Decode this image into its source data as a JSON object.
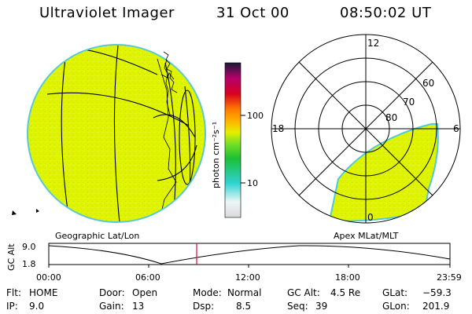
{
  "header": {
    "instrument": "Ultraviolet Imager",
    "date": "31 Oct 00",
    "time": "08:50:02 UT"
  },
  "colorbar": {
    "unit_label": "photon cm⁻²s⁻¹",
    "tick_labels": [
      "100",
      "10"
    ]
  },
  "polar_plot": {
    "mlt_labels": {
      "top": "12",
      "left": "18",
      "right": "6",
      "bottom": "0"
    },
    "lat_labels": [
      "60",
      "70",
      "80"
    ]
  },
  "image_labels": {
    "left": "Geographic Lat/Lon",
    "right": "Apex MLat/MLT"
  },
  "altitude_plot": {
    "axis_label": "GC Alt",
    "y_ticks": [
      "9.0",
      "1.8"
    ],
    "x_ticks": [
      "00:00",
      "06:00",
      "12:00",
      "18:00",
      "23:59"
    ]
  },
  "info": {
    "flt_label": "Flt:",
    "flt_value": "HOME",
    "ip_label": "IP:",
    "ip_value": "9.0",
    "door_label": "Door:",
    "door_value": "Open",
    "gain_label": "Gain:",
    "gain_value": "13",
    "mode_label": "Mode:",
    "mode_value": "Normal",
    "dsp_label": "Dsp:",
    "dsp_value": "8.5",
    "gcalt_label": "GC Alt:",
    "gcalt_value": "4.5 Re",
    "seq_label": "Seq:",
    "seq_value": "39",
    "glat_label": "GLat:",
    "glat_value": "−59.3",
    "glon_label": "GLon:",
    "glon_value": "201.9"
  },
  "colors": {
    "emission": "#dff500",
    "limb": "#4ecbd6",
    "marker": "#d0103a"
  }
}
